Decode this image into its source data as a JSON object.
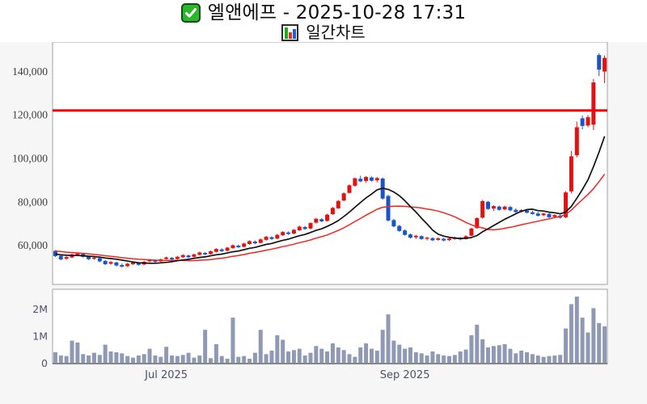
{
  "header": {
    "check_icon": "white-check-on-green-box",
    "title": "엘앤에프 - 2025-10-28 17:31",
    "chart_icon": "mini-bar-chart",
    "subtitle": "일간차트"
  },
  "colors": {
    "candle_up": "#e01212",
    "candle_down": "#1b54c8",
    "ma_fast": "#111111",
    "ma_slow": "#f5231f",
    "alert_line": "#f40000",
    "volume_bar": "#9099b4",
    "panel_border": "#a3a3a3",
    "axis_label_price": "#3d3d3d",
    "axis_label_volume": "#4a5264",
    "backdrop": "#f6f6f6",
    "panel_bg": "#ffffff"
  },
  "chart_data": [
    {
      "type": "candlestick",
      "title": "엘앤에프 daily candlestick chart (Jun 2025 - Oct 28 2025)",
      "ylim": [
        42000,
        153500
      ],
      "y_ticks": [
        {
          "value": 60000,
          "label": "60,000"
        },
        {
          "value": 80000,
          "label": "80,000"
        },
        {
          "value": 100000,
          "label": "100,000"
        },
        {
          "value": 120000,
          "label": "120,000"
        },
        {
          "value": 140000,
          "label": "140,000"
        }
      ],
      "alert_line": {
        "price": 122000,
        "color": "#f40000"
      },
      "moving_averages": [
        {
          "name": "fast-ma",
          "window": 10,
          "color": "#111111",
          "width": 1.7
        },
        {
          "name": "slow-ma",
          "window": 20,
          "color": "#f5231f",
          "width": 1.5
        }
      ],
      "ma_seed_closes_pre_chart": [
        60500,
        60200,
        59900,
        59600,
        59300,
        59000,
        58700,
        58400,
        58100,
        57800,
        57500,
        57200,
        56900,
        56600,
        56300,
        56000,
        55800,
        55600,
        55400,
        55200
      ],
      "candles": [
        [
          "2025-06-02",
          57400,
          57800,
          54600,
          55000
        ],
        [
          "2025-06-03",
          55200,
          55600,
          53100,
          53500
        ],
        [
          "2025-06-04",
          53800,
          55000,
          53400,
          54600
        ],
        [
          "2025-06-05",
          54400,
          56200,
          54100,
          55800
        ],
        [
          "2025-06-09",
          55600,
          56600,
          55000,
          56200
        ],
        [
          "2025-06-10",
          56000,
          56400,
          54300,
          54700
        ],
        [
          "2025-06-11",
          54900,
          55300,
          53200,
          53600
        ],
        [
          "2025-06-12",
          53800,
          54700,
          53300,
          54300
        ],
        [
          "2025-06-13",
          54100,
          54500,
          52200,
          52600
        ],
        [
          "2025-06-16",
          52800,
          53200,
          50900,
          51300
        ],
        [
          "2025-06-17",
          51500,
          52700,
          51100,
          52300
        ],
        [
          "2025-06-18",
          52100,
          52500,
          50300,
          50700
        ],
        [
          "2025-06-19",
          50900,
          51600,
          49800,
          50200
        ],
        [
          "2025-06-20",
          50400,
          51900,
          50000,
          51500
        ],
        [
          "2025-06-23",
          51300,
          52500,
          50900,
          52100
        ],
        [
          "2025-06-24",
          51900,
          52300,
          50600,
          51000
        ],
        [
          "2025-06-25",
          51200,
          52800,
          50800,
          52400
        ],
        [
          "2025-06-26",
          52600,
          53700,
          52200,
          53300
        ],
        [
          "2025-06-27",
          53100,
          53500,
          52000,
          52400
        ],
        [
          "2025-06-30",
          52600,
          53900,
          52300,
          53500
        ],
        [
          "2025-07-01",
          53700,
          54800,
          53400,
          54400
        ],
        [
          "2025-07-02",
          54200,
          54600,
          53100,
          53500
        ],
        [
          "2025-07-03",
          53700,
          55100,
          53400,
          54700
        ],
        [
          "2025-07-04",
          54500,
          55900,
          54200,
          55500
        ],
        [
          "2025-07-07",
          55300,
          55700,
          54100,
          54500
        ],
        [
          "2025-07-08",
          54700,
          56200,
          54400,
          55800
        ],
        [
          "2025-07-09",
          55600,
          57100,
          55300,
          56700
        ],
        [
          "2025-07-10",
          56500,
          56900,
          55400,
          55800
        ],
        [
          "2025-07-11",
          56000,
          57600,
          55700,
          57200
        ],
        [
          "2025-07-14",
          57000,
          58700,
          56700,
          58300
        ],
        [
          "2025-07-15",
          58100,
          58600,
          56900,
          57300
        ],
        [
          "2025-07-16",
          57500,
          59300,
          57200,
          58900
        ],
        [
          "2025-07-17",
          58700,
          60400,
          58400,
          60000
        ],
        [
          "2025-07-18",
          59800,
          60300,
          58700,
          59100
        ],
        [
          "2025-07-21",
          59300,
          61200,
          59000,
          60800
        ],
        [
          "2025-07-22",
          60600,
          62300,
          60200,
          61900
        ],
        [
          "2025-07-23",
          61700,
          62200,
          60500,
          60900
        ],
        [
          "2025-07-24",
          61100,
          63100,
          60800,
          62700
        ],
        [
          "2025-07-25",
          62500,
          64300,
          62100,
          63900
        ],
        [
          "2025-07-28",
          63700,
          64200,
          62500,
          62900
        ],
        [
          "2025-07-29",
          63100,
          65200,
          62800,
          64800
        ],
        [
          "2025-07-30",
          64600,
          66500,
          64300,
          66100
        ],
        [
          "2025-07-31",
          65900,
          66400,
          64800,
          65200
        ],
        [
          "2025-08-01",
          65400,
          67500,
          65100,
          67100
        ],
        [
          "2025-08-04",
          66900,
          69000,
          66600,
          68600
        ],
        [
          "2025-08-05",
          68400,
          68900,
          67100,
          67500
        ],
        [
          "2025-08-06",
          67700,
          70600,
          67400,
          70200
        ],
        [
          "2025-08-07",
          70400,
          72600,
          70000,
          72200
        ],
        [
          "2025-08-08",
          72000,
          72500,
          70600,
          71000
        ],
        [
          "2025-08-11",
          71200,
          74500,
          70900,
          74100
        ],
        [
          "2025-08-12",
          74300,
          77600,
          74000,
          77200
        ],
        [
          "2025-08-13",
          77000,
          80800,
          76700,
          80400
        ],
        [
          "2025-08-14",
          80600,
          84300,
          80200,
          83900
        ],
        [
          "2025-08-18",
          84100,
          88000,
          83800,
          87600
        ],
        [
          "2025-08-19",
          87400,
          91200,
          86900,
          90800
        ],
        [
          "2025-08-20",
          90600,
          92000,
          89000,
          89400
        ],
        [
          "2025-08-21",
          89600,
          91800,
          88700,
          91400
        ],
        [
          "2025-08-22",
          91200,
          91700,
          89300,
          89700
        ],
        [
          "2025-08-25",
          89900,
          91500,
          88900,
          90900
        ],
        [
          "2025-08-26",
          90700,
          91200,
          81000,
          81500
        ],
        [
          "2025-08-27",
          82700,
          83200,
          70900,
          71400
        ],
        [
          "2025-08-28",
          71600,
          72100,
          68300,
          68700
        ],
        [
          "2025-08-29",
          68900,
          69400,
          66200,
          66600
        ],
        [
          "2025-09-01",
          66800,
          67300,
          64400,
          64800
        ],
        [
          "2025-09-02",
          65000,
          65500,
          63100,
          63500
        ],
        [
          "2025-09-03",
          63700,
          64800,
          62900,
          64400
        ],
        [
          "2025-09-04",
          64200,
          64600,
          62500,
          62900
        ],
        [
          "2025-09-05",
          63000,
          63900,
          62200,
          63500
        ],
        [
          "2025-09-08",
          63300,
          63700,
          61900,
          62300
        ],
        [
          "2025-09-09",
          62500,
          63600,
          62100,
          63200
        ],
        [
          "2025-09-10",
          63000,
          63400,
          61800,
          62200
        ],
        [
          "2025-09-11",
          62400,
          63500,
          62000,
          63100
        ],
        [
          "2025-09-12",
          62900,
          64000,
          62600,
          63600
        ],
        [
          "2025-09-15",
          63400,
          63800,
          62300,
          62700
        ],
        [
          "2025-09-16",
          62900,
          64600,
          62600,
          64200
        ],
        [
          "2025-09-17",
          64400,
          68100,
          64100,
          67700
        ],
        [
          "2025-09-18",
          67900,
          72900,
          67600,
          72500
        ],
        [
          "2025-09-19",
          72700,
          80900,
          72300,
          80300
        ],
        [
          "2025-09-22",
          80000,
          80400,
          76300,
          76700
        ],
        [
          "2025-09-23",
          76900,
          78400,
          75800,
          78000
        ],
        [
          "2025-09-24",
          77800,
          78300,
          75900,
          76300
        ],
        [
          "2025-09-25",
          76500,
          78200,
          76100,
          77800
        ],
        [
          "2025-09-26",
          77600,
          78100,
          75700,
          76100
        ],
        [
          "2025-09-29",
          76300,
          77000,
          74900,
          75300
        ],
        [
          "2025-09-30",
          75500,
          76600,
          75100,
          76200
        ],
        [
          "2025-10-01",
          76000,
          76500,
          74600,
          75000
        ],
        [
          "2025-10-02",
          75200,
          75900,
          74000,
          74400
        ],
        [
          "2025-10-10",
          74600,
          75300,
          73200,
          73600
        ],
        [
          "2025-10-13",
          73800,
          75000,
          73400,
          74600
        ],
        [
          "2025-10-14",
          74400,
          74800,
          72500,
          72900
        ],
        [
          "2025-10-15",
          73100,
          74300,
          72700,
          73900
        ],
        [
          "2025-10-16",
          73700,
          74100,
          72300,
          72700
        ],
        [
          "2025-10-17",
          72900,
          84900,
          72500,
          84300
        ],
        [
          "2025-10-20",
          84800,
          103400,
          83900,
          100900
        ],
        [
          "2025-10-21",
          101400,
          116900,
          100400,
          114300
        ],
        [
          "2025-10-22",
          118400,
          119700,
          113300,
          114900
        ],
        [
          "2025-10-23",
          115100,
          119900,
          114300,
          118900
        ],
        [
          "2025-10-24",
          115500,
          136500,
          113000,
          134900
        ],
        [
          "2025-10-27",
          147500,
          148300,
          137800,
          140800
        ],
        [
          "2025-10-28",
          139900,
          147300,
          134600,
          146200
        ]
      ]
    },
    {
      "type": "bar",
      "title": "daily trading volume",
      "ylim": [
        0,
        2750000
      ],
      "y_ticks": [
        {
          "value": 0,
          "label": "0"
        },
        {
          "value": 1000000,
          "label": "1M"
        },
        {
          "value": 2000000,
          "label": "2M"
        }
      ],
      "x_ticks": [
        {
          "date": "2025-07-01",
          "label": "Jul 2025"
        },
        {
          "date": "2025-09-01",
          "label": "Sep 2025"
        }
      ],
      "values": [
        420000,
        300000,
        280000,
        850000,
        780000,
        350000,
        300000,
        400000,
        320000,
        700000,
        450000,
        420000,
        380000,
        280000,
        220000,
        300000,
        350000,
        550000,
        300000,
        250000,
        620000,
        300000,
        280000,
        320000,
        400000,
        220000,
        300000,
        1250000,
        200000,
        720000,
        280000,
        180000,
        1700000,
        250000,
        280000,
        180000,
        400000,
        1250000,
        350000,
        480000,
        1050000,
        880000,
        450000,
        500000,
        550000,
        300000,
        400000,
        650000,
        550000,
        450000,
        750000,
        600000,
        500000,
        350000,
        250000,
        600000,
        750000,
        550000,
        480000,
        1250000,
        1820000,
        850000,
        700000,
        550000,
        600000,
        420000,
        380000,
        300000,
        450000,
        350000,
        300000,
        280000,
        320000,
        450000,
        520000,
        1050000,
        1440000,
        900000,
        600000,
        650000,
        680000,
        720000,
        550000,
        380000,
        480000,
        420000,
        350000,
        300000,
        250000,
        280000,
        300000,
        320000,
        1300000,
        2200000,
        2480000,
        1700000,
        1150000,
        2050000,
        1500000,
        1380000
      ]
    }
  ]
}
